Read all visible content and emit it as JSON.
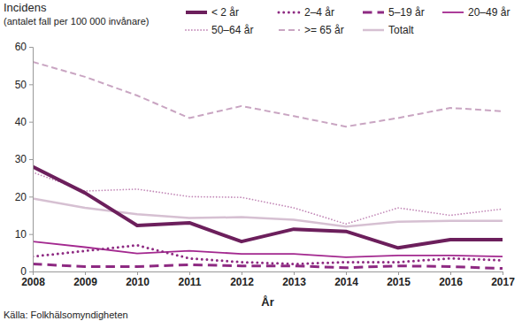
{
  "chart_data": {
    "type": "line",
    "y_label": [
      "Incidens",
      "(antalet fall per 100 000 invånare)"
    ],
    "x_label": "År",
    "source": "Källa: Folkhälsomyndigheten",
    "x": [
      2008,
      2009,
      2010,
      2011,
      2012,
      2013,
      2014,
      2015,
      2016,
      2017
    ],
    "xlim": [
      2008,
      2017
    ],
    "xticks": [
      2008,
      2009,
      2010,
      2011,
      2012,
      2013,
      2014,
      2015,
      2016,
      2017
    ],
    "ylim": [
      0,
      60
    ],
    "yticks": [
      0,
      10,
      20,
      30,
      40,
      50,
      60
    ],
    "grid": false,
    "legend": "top",
    "series": [
      {
        "name": "< 2 år",
        "color": "#6c1f5c",
        "line_style": "solid",
        "values": [
          28,
          21,
          12.3,
          13,
          8,
          11.3,
          10.7,
          6.3,
          8.5,
          8.5
        ]
      },
      {
        "name": "2–4 år",
        "color": "#8e2a82",
        "line_style": "dotted",
        "values": [
          4,
          5.5,
          7,
          3.5,
          2.5,
          2,
          2.5,
          2.5,
          3.5,
          3
        ]
      },
      {
        "name": "5–19 år",
        "color": "#8e2a82",
        "line_style": "dashed",
        "values": [
          2,
          1.3,
          1.3,
          1.8,
          1.5,
          1.5,
          1,
          1.5,
          1.3,
          0.8
        ]
      },
      {
        "name": "20–49 år",
        "color": "#a3288f",
        "line_style": "solid",
        "values": [
          8,
          6.5,
          4.8,
          5.5,
          4.7,
          4.7,
          3.8,
          4.3,
          4.3,
          4
        ]
      },
      {
        "name": "50–64 år",
        "color": "#c38ab8",
        "line_style": "dotted",
        "values": [
          26.5,
          21.5,
          22,
          20,
          19.8,
          17,
          12.7,
          17,
          15,
          16.7
        ]
      },
      {
        "name": ">= 65 år",
        "color": "#c9a5c2",
        "line_style": "dashed",
        "values": [
          56,
          52,
          47,
          41,
          44.2,
          41.5,
          38.7,
          41,
          43.7,
          42.8
        ]
      },
      {
        "name": "Totalt",
        "color": "#d6c0d2",
        "line_style": "solid",
        "values": [
          19.5,
          17,
          15.3,
          14.3,
          14.5,
          13.8,
          12,
          13.3,
          13.5,
          13.5
        ]
      }
    ]
  }
}
